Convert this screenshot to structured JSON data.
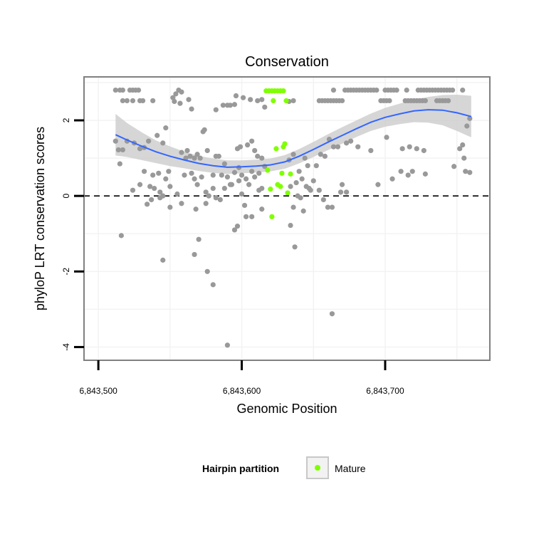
{
  "chart_data": {
    "type": "scatter",
    "title": "Conservation",
    "xlabel": "Genomic Position",
    "ylabel": "phyloP LRT conservation scores",
    "xlim": [
      6843490,
      6843773
    ],
    "ylim": [
      -4.35,
      3.15
    ],
    "x_ticks": [
      {
        "value": 6843500,
        "label": "6,843,500"
      },
      {
        "value": 6843600,
        "label": "6,843,600"
      },
      {
        "value": 6843700,
        "label": "6,843,700"
      }
    ],
    "y_ticks": [
      {
        "value": -4,
        "label": "-4"
      },
      {
        "value": -2,
        "label": "-2"
      },
      {
        "value": 0,
        "label": "0"
      },
      {
        "value": 2,
        "label": "2"
      }
    ],
    "reference_line": {
      "y": 0,
      "style": "dashed"
    },
    "grid": true,
    "legend": {
      "title": "Hairpin partition",
      "entries": [
        {
          "label": "Mature",
          "color": "#7fff00"
        }
      ],
      "position": "bottom"
    },
    "colors": {
      "other_points": "#999999",
      "mature_points": "#7fff00",
      "smooth_line": "#3366ff",
      "confidence_band": "#cccccc"
    },
    "series": [
      {
        "name": "Mature",
        "points": [
          [
            6843617,
            2.78
          ],
          [
            6843619,
            2.78
          ],
          [
            6843621,
            2.78
          ],
          [
            6843623,
            2.78
          ],
          [
            6843625,
            2.78
          ],
          [
            6843627,
            2.78
          ],
          [
            6843629,
            2.78
          ],
          [
            6843622,
            2.52
          ],
          [
            6843631,
            2.52
          ],
          [
            6843624,
            1.25
          ],
          [
            6843629,
            1.3
          ],
          [
            6843630,
            1.38
          ],
          [
            6843618,
            0.68
          ],
          [
            6843628,
            0.6
          ],
          [
            6843634,
            0.58
          ],
          [
            6843625,
            0.3
          ],
          [
            6843627,
            0.25
          ],
          [
            6843620,
            0.18
          ],
          [
            6843632,
            0.08
          ],
          [
            6843621,
            -0.55
          ]
        ]
      },
      {
        "points": [
          [
            6843512,
            2.8
          ],
          [
            6843515,
            2.8
          ],
          [
            6843517,
            2.8
          ],
          [
            6843522,
            2.8
          ],
          [
            6843524,
            2.8
          ],
          [
            6843526,
            2.8
          ],
          [
            6843528,
            2.8
          ],
          [
            6843517,
            2.52
          ],
          [
            6843520,
            2.52
          ],
          [
            6843524,
            2.52
          ],
          [
            6843529,
            2.52
          ],
          [
            6843531,
            2.52
          ],
          [
            6843538,
            2.52
          ],
          [
            6843552,
            2.6
          ],
          [
            6843554,
            2.7
          ],
          [
            6843556,
            2.8
          ],
          [
            6843558,
            2.75
          ],
          [
            6843553,
            2.5
          ],
          [
            6843557,
            2.45
          ],
          [
            6843563,
            2.55
          ],
          [
            6843565,
            2.3
          ],
          [
            6843582,
            2.28
          ],
          [
            6843587,
            2.4
          ],
          [
            6843590,
            2.4
          ],
          [
            6843592,
            2.4
          ],
          [
            6843595,
            2.42
          ],
          [
            6843596,
            2.65
          ],
          [
            6843601,
            2.6
          ],
          [
            6843606,
            2.55
          ],
          [
            6843611,
            2.52
          ],
          [
            6843614,
            2.55
          ],
          [
            6843616,
            2.35
          ],
          [
            6843633,
            2.5
          ],
          [
            6843636,
            2.52
          ],
          [
            6843654,
            2.52
          ],
          [
            6843656,
            2.52
          ],
          [
            6843658,
            2.52
          ],
          [
            6843660,
            2.52
          ],
          [
            6843662,
            2.52
          ],
          [
            6843664,
            2.52
          ],
          [
            6843666,
            2.52
          ],
          [
            6843668,
            2.52
          ],
          [
            6843670,
            2.52
          ],
          [
            6843664,
            2.8
          ],
          [
            6843672,
            2.8
          ],
          [
            6843674,
            2.8
          ],
          [
            6843676,
            2.8
          ],
          [
            6843678,
            2.8
          ],
          [
            6843680,
            2.8
          ],
          [
            6843682,
            2.8
          ],
          [
            6843684,
            2.8
          ],
          [
            6843686,
            2.8
          ],
          [
            6843688,
            2.8
          ],
          [
            6843690,
            2.8
          ],
          [
            6843692,
            2.8
          ],
          [
            6843694,
            2.8
          ],
          [
            6843697,
            2.52
          ],
          [
            6843699,
            2.52
          ],
          [
            6843701,
            2.52
          ],
          [
            6843703,
            2.52
          ],
          [
            6843700,
            2.8
          ],
          [
            6843702,
            2.8
          ],
          [
            6843704,
            2.8
          ],
          [
            6843706,
            2.8
          ],
          [
            6843708,
            2.8
          ],
          [
            6843714,
            2.52
          ],
          [
            6843716,
            2.52
          ],
          [
            6843718,
            2.52
          ],
          [
            6843720,
            2.52
          ],
          [
            6843722,
            2.52
          ],
          [
            6843724,
            2.52
          ],
          [
            6843726,
            2.52
          ],
          [
            6843728,
            2.52
          ],
          [
            6843715,
            2.8
          ],
          [
            6843723,
            2.8
          ],
          [
            6843725,
            2.8
          ],
          [
            6843727,
            2.8
          ],
          [
            6843729,
            2.8
          ],
          [
            6843731,
            2.8
          ],
          [
            6843733,
            2.8
          ],
          [
            6843735,
            2.8
          ],
          [
            6843737,
            2.8
          ],
          [
            6843739,
            2.8
          ],
          [
            6843741,
            2.8
          ],
          [
            6843743,
            2.8
          ],
          [
            6843745,
            2.8
          ],
          [
            6843747,
            2.8
          ],
          [
            6843754,
            2.8
          ],
          [
            6843736,
            2.52
          ],
          [
            6843738,
            2.52
          ],
          [
            6843740,
            2.52
          ],
          [
            6843742,
            2.52
          ],
          [
            6843744,
            2.52
          ],
          [
            6843512,
            1.45
          ],
          [
            6843514,
            1.22
          ],
          [
            6843517,
            1.22
          ],
          [
            6843520,
            1.45
          ],
          [
            6843525,
            1.4
          ],
          [
            6843529,
            1.25
          ],
          [
            6843532,
            1.28
          ],
          [
            6843535,
            1.45
          ],
          [
            6843541,
            1.6
          ],
          [
            6843545,
            1.4
          ],
          [
            6843547,
            1.8
          ],
          [
            6843515,
            0.85
          ],
          [
            6843524,
            0.15
          ],
          [
            6843529,
            0.3
          ],
          [
            6843532,
            0.65
          ],
          [
            6843536,
            0.25
          ],
          [
            6843538,
            0.55
          ],
          [
            6843539,
            0.2
          ],
          [
            6843542,
            0.6
          ],
          [
            6843543,
            0.1
          ],
          [
            6843545,
            0.0
          ],
          [
            6843547,
            0.45
          ],
          [
            6843549,
            0.65
          ],
          [
            6843550,
            0.25
          ],
          [
            6843534,
            -0.22
          ],
          [
            6843537,
            -0.1
          ],
          [
            6843543,
            -0.05
          ],
          [
            6843550,
            -0.3
          ],
          [
            6843555,
            0.05
          ],
          [
            6843558,
            -0.2
          ],
          [
            6843560,
            0.55
          ],
          [
            6843562,
            1.2
          ],
          [
            6843564,
            1.05
          ],
          [
            6843567,
            1.0
          ],
          [
            6843569,
            1.1
          ],
          [
            6843571,
            1.0
          ],
          [
            6843573,
            1.7
          ],
          [
            6843574,
            1.75
          ],
          [
            6843576,
            1.2
          ],
          [
            6843558,
            1.15
          ],
          [
            6843561,
            1.0
          ],
          [
            6843565,
            0.6
          ],
          [
            6843567,
            0.45
          ],
          [
            6843569,
            0.3
          ],
          [
            6843572,
            0.5
          ],
          [
            6843575,
            0.1
          ],
          [
            6843577,
            0.0
          ],
          [
            6843580,
            0.55
          ],
          [
            6843582,
            1.05
          ],
          [
            6843584,
            1.05
          ],
          [
            6843586,
            0.55
          ],
          [
            6843588,
            0.85
          ],
          [
            6843590,
            0.5
          ],
          [
            6843593,
            0.3
          ],
          [
            6843595,
            0.62
          ],
          [
            6843568,
            -0.35
          ],
          [
            6843575,
            -0.2
          ],
          [
            6843580,
            0.2
          ],
          [
            6843582,
            -0.05
          ],
          [
            6843585,
            -0.1
          ],
          [
            6843588,
            0.2
          ],
          [
            6843592,
            0.3
          ],
          [
            6843598,
            0.4
          ],
          [
            6843600,
            0.05
          ],
          [
            6843602,
            -0.25
          ],
          [
            6843597,
            1.25
          ],
          [
            6843599,
            1.3
          ],
          [
            6843604,
            1.35
          ],
          [
            6843607,
            1.45
          ],
          [
            6843609,
            1.2
          ],
          [
            6843611,
            1.05
          ],
          [
            6843614,
            1.0
          ],
          [
            6843616,
            0.78
          ],
          [
            6843598,
            0.75
          ],
          [
            6843600,
            0.55
          ],
          [
            6843603,
            0.45
          ],
          [
            6843605,
            0.3
          ],
          [
            6843607,
            0.65
          ],
          [
            6843609,
            0.5
          ],
          [
            6843612,
            0.6
          ],
          [
            6843614,
            0.2
          ],
          [
            6843603,
            -0.55
          ],
          [
            6843607,
            -0.55
          ],
          [
            6843612,
            0.15
          ],
          [
            6843614,
            -0.35
          ],
          [
            6843597,
            -0.8
          ],
          [
            6843595,
            -0.9
          ],
          [
            6843633,
            0.95
          ],
          [
            6843636,
            1.1
          ],
          [
            6843638,
            0.35
          ],
          [
            6843640,
            0.65
          ],
          [
            6843642,
            0.45
          ],
          [
            6843644,
            1.0
          ],
          [
            6843646,
            0.8
          ],
          [
            6843648,
            0.15
          ],
          [
            6843650,
            0.4
          ],
          [
            6843652,
            0.8
          ],
          [
            6843654,
            0.15
          ],
          [
            6843634,
            0.25
          ],
          [
            6843636,
            -0.3
          ],
          [
            6843639,
            0.0
          ],
          [
            6843641,
            -0.05
          ],
          [
            6843643,
            -0.4
          ],
          [
            6843645,
            0.25
          ],
          [
            6843647,
            0.2
          ],
          [
            6843634,
            -0.78
          ],
          [
            6843637,
            -1.35
          ],
          [
            6843655,
            1.1
          ],
          [
            6843658,
            1.05
          ],
          [
            6843661,
            1.5
          ],
          [
            6843663,
            -0.3
          ],
          [
            6843664,
            1.3
          ],
          [
            6843667,
            1.3
          ],
          [
            6843669,
            0.1
          ],
          [
            6843670,
            0.3
          ],
          [
            6843673,
            1.4
          ],
          [
            6843657,
            -0.1
          ],
          [
            6843660,
            -0.3
          ],
          [
            6843673,
            0.1
          ],
          [
            6843676,
            1.45
          ],
          [
            6843681,
            1.3
          ],
          [
            6843690,
            1.2
          ],
          [
            6843695,
            0.3
          ],
          [
            6843701,
            1.55
          ],
          [
            6843705,
            0.45
          ],
          [
            6843711,
            0.65
          ],
          [
            6843716,
            0.55
          ],
          [
            6843712,
            1.25
          ],
          [
            6843717,
            1.3
          ],
          [
            6843722,
            1.25
          ],
          [
            6843727,
            1.2
          ],
          [
            6843719,
            0.65
          ],
          [
            6843728,
            0.58
          ],
          [
            6843748,
            0.78
          ],
          [
            6843752,
            1.25
          ],
          [
            6843754,
            1.35
          ],
          [
            6843755,
            1.0
          ],
          [
            6843756,
            0.65
          ],
          [
            6843759,
            0.62
          ],
          [
            6843757,
            1.85
          ],
          [
            6843759,
            2.05
          ],
          [
            6843516,
            -1.05
          ],
          [
            6843545,
            -1.7
          ],
          [
            6843567,
            -1.55
          ],
          [
            6843570,
            -1.15
          ],
          [
            6843576,
            -2.0
          ],
          [
            6843580,
            -2.35
          ],
          [
            6843590,
            -3.95
          ],
          [
            6843663,
            -3.12
          ]
        ]
      }
    ],
    "smooth": {
      "x": [
        6843512,
        6843520,
        6843530,
        6843540,
        6843550,
        6843560,
        6843570,
        6843580,
        6843590,
        6843600,
        6843610,
        6843620,
        6843630,
        6843640,
        6843650,
        6843660,
        6843670,
        6843680,
        6843690,
        6843700,
        6843710,
        6843720,
        6843730,
        6843740,
        6843750,
        6843760
      ],
      "y": [
        1.62,
        1.48,
        1.32,
        1.17,
        1.05,
        0.95,
        0.86,
        0.8,
        0.76,
        0.77,
        0.79,
        0.82,
        0.9,
        1.05,
        1.23,
        1.42,
        1.6,
        1.78,
        1.95,
        2.08,
        2.17,
        2.25,
        2.28,
        2.27,
        2.2,
        2.1
      ],
      "band": [
        0.55,
        0.45,
        0.37,
        0.3,
        0.26,
        0.22,
        0.2,
        0.19,
        0.18,
        0.17,
        0.17,
        0.17,
        0.18,
        0.19,
        0.2,
        0.21,
        0.22,
        0.22,
        0.23,
        0.25,
        0.27,
        0.3,
        0.34,
        0.4,
        0.48,
        0.55
      ]
    }
  }
}
